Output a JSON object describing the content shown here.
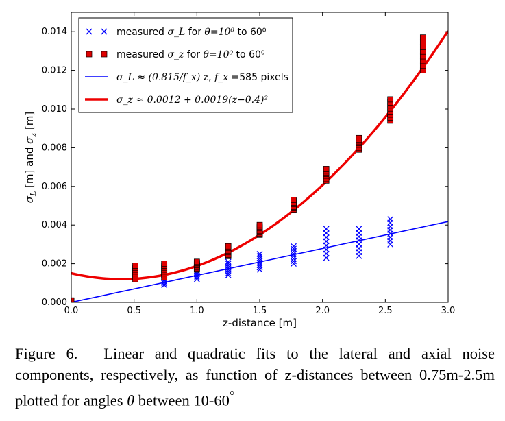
{
  "chart_data": {
    "type": "scatter",
    "xlabel": "z-distance [m]",
    "ylabel_parts": [
      "σ",
      "L",
      " [m] and ",
      "σ",
      "z",
      " [m]"
    ],
    "xlim": [
      0.0,
      3.0
    ],
    "ylim": [
      0.0,
      0.015
    ],
    "xticks": [
      "0.0",
      "0.5",
      "1.0",
      "1.5",
      "2.0",
      "2.5",
      "3.0"
    ],
    "yticks": [
      "0.000",
      "0.002",
      "0.004",
      "0.006",
      "0.008",
      "0.010",
      "0.012",
      "0.014"
    ],
    "xtick_values": [
      0.0,
      0.5,
      1.0,
      1.5,
      2.0,
      2.5,
      3.0
    ],
    "ytick_values": [
      0.0,
      0.002,
      0.004,
      0.006,
      0.008,
      0.01,
      0.012,
      0.014
    ],
    "grid": false,
    "legend_placement": "top-left",
    "legend": [
      {
        "marker": "x",
        "color": "#0000ff",
        "parts": [
          "measured ",
          "σ_L",
          " for ",
          "θ=10⁰",
          " to ",
          "60⁰"
        ]
      },
      {
        "marker": "square",
        "color": "#e00000",
        "parts": [
          "measured ",
          "σ_z",
          " for ",
          "θ=10⁰",
          " to ",
          "60⁰"
        ]
      },
      {
        "marker": "line",
        "color": "#0000ff",
        "parts": [
          "σ_L ≈ (0.815/f_x) z",
          ", ",
          "f_x",
          " =585 pixels"
        ]
      },
      {
        "marker": "thickline",
        "color": "#ee0000",
        "parts": [
          "σ_z ≈ 0.0012 + 0.0019(z−0.4)²"
        ]
      }
    ],
    "series": [
      {
        "name": "measured σ_L for θ=10⁰ to 60⁰",
        "kind": "scatter-x",
        "color": "#0000ff",
        "points": [
          {
            "x": 0.74,
            "ymin": 0.0009,
            "ymax": 0.0015
          },
          {
            "x": 1.0,
            "ymin": 0.0012,
            "ymax": 0.0018
          },
          {
            "x": 1.25,
            "ymin": 0.0014,
            "ymax": 0.0021
          },
          {
            "x": 1.5,
            "ymin": 0.0017,
            "ymax": 0.0025
          },
          {
            "x": 1.77,
            "ymin": 0.002,
            "ymax": 0.0029
          },
          {
            "x": 2.03,
            "ymin": 0.0023,
            "ymax": 0.0038
          },
          {
            "x": 2.29,
            "ymin": 0.0024,
            "ymax": 0.0038
          },
          {
            "x": 2.54,
            "ymin": 0.003,
            "ymax": 0.0043
          }
        ]
      },
      {
        "name": "measured σ_z for θ=10⁰ to 60⁰",
        "kind": "scatter-square",
        "color": "#e00000",
        "points": [
          {
            "x": 0.0,
            "ymin": 0.0,
            "ymax": 0.0001
          },
          {
            "x": 0.51,
            "ymin": 0.0012,
            "ymax": 0.0019
          },
          {
            "x": 0.74,
            "ymin": 0.0013,
            "ymax": 0.002
          },
          {
            "x": 1.0,
            "ymin": 0.0017,
            "ymax": 0.0021
          },
          {
            "x": 1.25,
            "ymin": 0.0024,
            "ymax": 0.0029
          },
          {
            "x": 1.5,
            "ymin": 0.0035,
            "ymax": 0.004
          },
          {
            "x": 1.77,
            "ymin": 0.0048,
            "ymax": 0.0053
          },
          {
            "x": 2.03,
            "ymin": 0.0063,
            "ymax": 0.0069
          },
          {
            "x": 2.29,
            "ymin": 0.0079,
            "ymax": 0.0085
          },
          {
            "x": 2.54,
            "ymin": 0.0094,
            "ymax": 0.0105
          },
          {
            "x": 2.8,
            "ymin": 0.012,
            "ymax": 0.0137
          }
        ]
      },
      {
        "name": "σ_L ≈ (0.815/f_x) z, f_x = 585 pixels",
        "kind": "line",
        "color": "#0000ff",
        "x": [
          0.0,
          3.0
        ],
        "y": [
          0.0,
          0.00418
        ]
      },
      {
        "name": "σ_z ≈ 0.0012 + 0.0019(z−0.4)²",
        "kind": "curve",
        "color": "#ee0000",
        "x": [
          0.0,
          0.2,
          0.4,
          0.6,
          0.8,
          1.0,
          1.2,
          1.4,
          1.6,
          1.8,
          2.0,
          2.2,
          2.4,
          2.6,
          2.8,
          3.0
        ],
        "y": [
          0.0015,
          0.00128,
          0.0012,
          0.00128,
          0.0015,
          0.00188,
          0.00242,
          0.0031,
          0.00394,
          0.00492,
          0.00606,
          0.00736,
          0.0088,
          0.0104,
          0.01214,
          0.01404
        ]
      }
    ]
  },
  "caption": {
    "label": "Figure 6.",
    "text1": "Linear and quadratic fits to the lateral and axial noise components, respectively, as function of z-distances between 0.75m-2.5m plotted for angles ",
    "theta": "θ",
    "text2": " between 10-60",
    "degree": "°"
  }
}
